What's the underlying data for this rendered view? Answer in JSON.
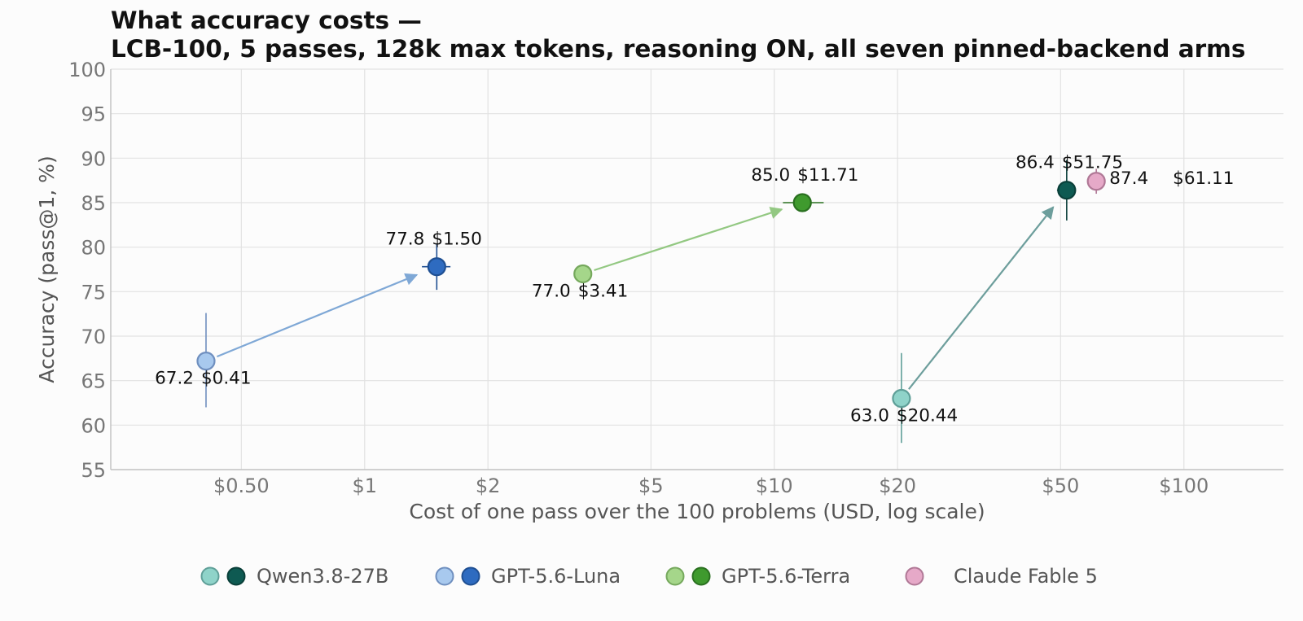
{
  "chart_data": {
    "type": "scatter",
    "title": [
      "What accuracy costs —",
      "LCB-100, 5 passes, 128k max tokens, reasoning ON, all seven pinned-backend arms"
    ],
    "xlabel": "Cost of one pass over the 100 problems (USD, log scale)",
    "ylabel": "Accuracy (pass@1, %)",
    "x_scale": "log",
    "xlim": [
      0.24,
      175
    ],
    "ylim": [
      55,
      100
    ],
    "x_ticks": [
      {
        "value": 0.5,
        "label": "$0.50"
      },
      {
        "value": 1,
        "label": "$1"
      },
      {
        "value": 2,
        "label": "$2"
      },
      {
        "value": 5,
        "label": "$5"
      },
      {
        "value": 10,
        "label": "$10"
      },
      {
        "value": 20,
        "label": "$20"
      },
      {
        "value": 50,
        "label": "$50"
      },
      {
        "value": 100,
        "label": "$100"
      }
    ],
    "y_ticks": [
      55,
      60,
      65,
      70,
      75,
      80,
      85,
      90,
      95,
      100
    ],
    "grid": true,
    "legend_position": "bottom",
    "points": [
      {
        "id": "qwen-light",
        "x": 20.44,
        "y": 63.0,
        "y_err": [
          58.0,
          68.1
        ],
        "x_err": [
          19.5,
          21.4
        ],
        "fill": "#8fd3c9",
        "stroke": "#5f9f98",
        "acc_label": "63.0",
        "cost_label": "$20.44",
        "label_pos": "below-left"
      },
      {
        "id": "qwen-dark",
        "x": 51.75,
        "y": 86.4,
        "y_err": [
          83.0,
          89.8
        ],
        "x_err": [
          49.0,
          54.5
        ],
        "fill": "#0e5a52",
        "stroke": "#0a3f39",
        "acc_label": "86.4",
        "cost_label": "$51.75",
        "label_pos": "above-left"
      },
      {
        "id": "luna-light",
        "x": 0.41,
        "y": 67.2,
        "y_err": [
          62.0,
          72.6
        ],
        "x_err": [
          0.39,
          0.43
        ],
        "fill": "#a8c9ee",
        "stroke": "#6f8fbf",
        "acc_label": "67.2",
        "cost_label": "$0.41",
        "label_pos": "below-left"
      },
      {
        "id": "luna-dark",
        "x": 1.5,
        "y": 77.8,
        "y_err": [
          75.2,
          80.4
        ],
        "x_err": [
          1.38,
          1.62
        ],
        "fill": "#2e6bc0",
        "stroke": "#1f4f92",
        "acc_label": "77.8",
        "cost_label": "$1.50",
        "label_pos": "above-left"
      },
      {
        "id": "terra-light",
        "x": 3.41,
        "y": 77.0,
        "y_err": [
          76.2,
          77.8
        ],
        "x_err": [
          3.3,
          3.52
        ],
        "fill": "#a5d68a",
        "stroke": "#75a85c",
        "acc_label": "77.0",
        "cost_label": "$3.41",
        "label_pos": "below-left"
      },
      {
        "id": "terra-dark",
        "x": 11.71,
        "y": 85.0,
        "y_err": [
          84.2,
          85.9
        ],
        "x_err": [
          10.5,
          13.2
        ],
        "fill": "#3f9a2e",
        "stroke": "#2a7020",
        "acc_label": "85.0",
        "cost_label": "$11.71",
        "label_pos": "above-left"
      },
      {
        "id": "fable",
        "x": 61.11,
        "y": 87.4,
        "y_err": [
          86.0,
          88.8
        ],
        "x_err": [
          59.5,
          62.8
        ],
        "fill": "#e6a9c8",
        "stroke": "#b07896",
        "acc_label": "87.4",
        "cost_label": "$61.11",
        "label_pos": "right"
      }
    ],
    "arrows": [
      {
        "from": "luna-light",
        "to": "luna-dark",
        "color": "#7fa8d6"
      },
      {
        "from": "terra-light",
        "to": "terra-dark",
        "color": "#93c882"
      },
      {
        "from": "qwen-light",
        "to": "qwen-dark",
        "color": "#6d9e9c"
      }
    ],
    "legend": [
      {
        "name": "Qwen3.8-27B",
        "swatches": [
          "qwen-light",
          "qwen-dark"
        ]
      },
      {
        "name": "GPT-5.6-Luna",
        "swatches": [
          "luna-light",
          "luna-dark"
        ]
      },
      {
        "name": "GPT-5.6-Terra",
        "swatches": [
          "terra-light",
          "terra-dark"
        ]
      },
      {
        "name": "Claude Fable 5",
        "swatches": [
          "fable"
        ]
      }
    ]
  }
}
